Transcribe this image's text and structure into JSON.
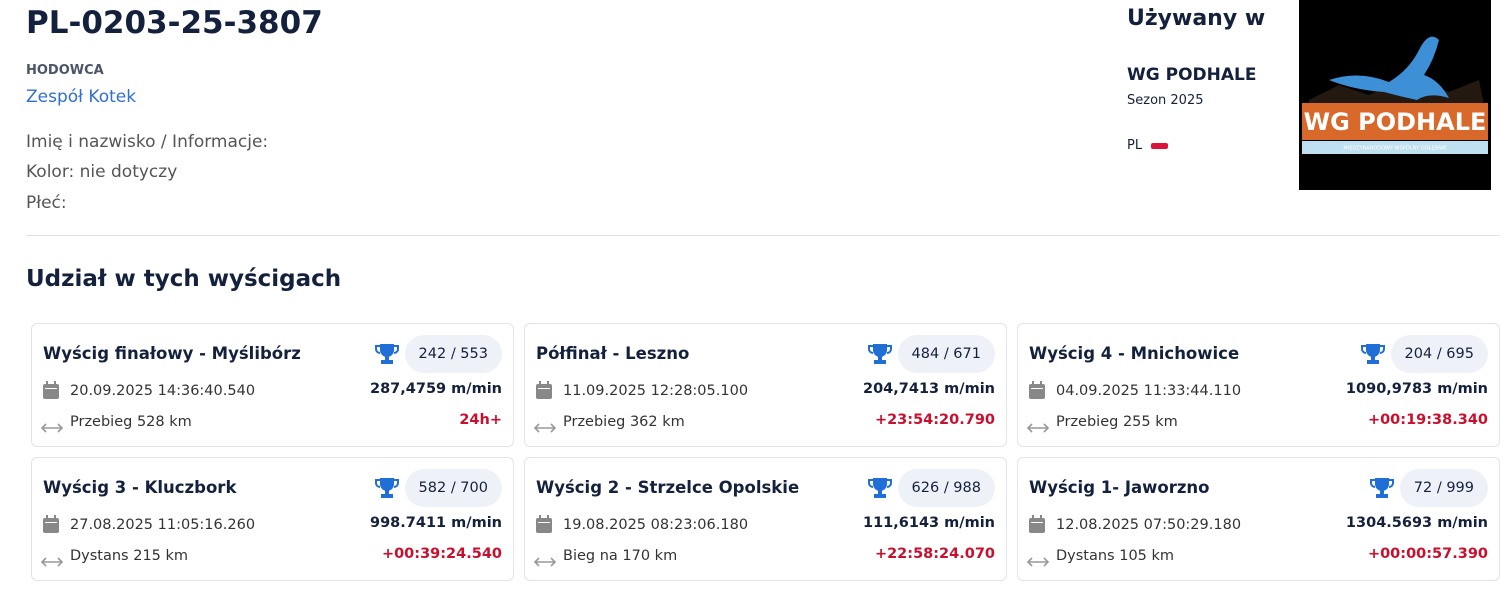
{
  "header": {
    "title": "PL-0203-25-3807",
    "breeder_label": "HODOWCA",
    "breeder": "Zespół Kotek",
    "info": [
      "Imię i nazwisko / Informacje:",
      "Kolor: nie dotyczy",
      "Płeć:"
    ]
  },
  "used_in": {
    "heading": "Używany w",
    "club": "WG PODHALE",
    "season": "Sezon 2025",
    "country": "PL",
    "logo_title": "WG PODHALE",
    "logo_subtitle": "MIĘDZYNARODOWY WSPÓLNY GOŁĘBNIK"
  },
  "races": {
    "title": "Udział w tych wyścigach",
    "items": [
      {
        "name": "Wyścig finałowy - Myślibórz",
        "rank": "242 / 553",
        "date": "20.09.2025 14:36:40.540",
        "speed": "287,4759 m/min",
        "distance": "Przebieg 528 km",
        "time": "24h+"
      },
      {
        "name": "Półfinał - Leszno",
        "rank": "484 / 671",
        "date": "11.09.2025 12:28:05.100",
        "speed": "204,7413 m/min",
        "distance": "Przebieg 362 km",
        "time": "+23:54:20.790"
      },
      {
        "name": "Wyścig 4 - Mnichowice",
        "rank": "204 / 695",
        "date": "04.09.2025 11:33:44.110",
        "speed": "1090,9783 m/min",
        "distance": "Przebieg 255 km",
        "time": "+00:19:38.340"
      },
      {
        "name": "Wyścig 3 - Kluczbork",
        "rank": "582 / 700",
        "date": "27.08.2025 11:05:16.260",
        "speed": "998.7411 m/min",
        "distance": "Dystans 215 km",
        "time": "+00:39:24.540"
      },
      {
        "name": "Wyścig 2 - Strzelce Opolskie",
        "rank": "626 / 988",
        "date": "19.08.2025 08:23:06.180",
        "speed": "111,6143 m/min",
        "distance": "Bieg na 170 km",
        "time": "+22:58:24.070"
      },
      {
        "name": "Wyścig 1- Jaworzno",
        "rank": "72 / 999",
        "date": "12.08.2025 07:50:29.180",
        "speed": "1304.5693 m/min",
        "distance": "Dystans 105 km",
        "time": "+00:00:57.390"
      }
    ]
  }
}
